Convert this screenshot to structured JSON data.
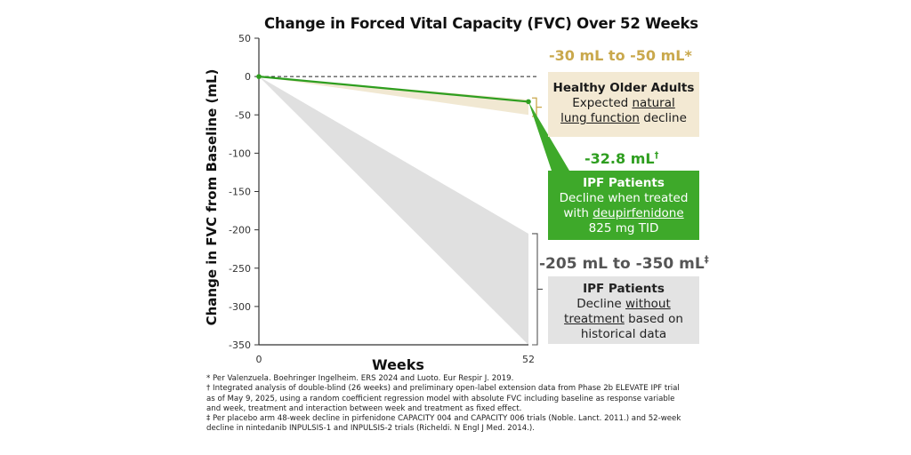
{
  "chart_data": {
    "type": "line",
    "title": "Change in Forced Vital Capacity (FVC) Over 52 Weeks",
    "xlabel": "Weeks",
    "ylabel": "Change in FVC from Baseline (mL)",
    "xlim": [
      0,
      52
    ],
    "ylim": [
      -350,
      50
    ],
    "x_ticks": [
      0,
      52
    ],
    "y_ticks": [
      50,
      0,
      -50,
      -100,
      -150,
      -200,
      -250,
      -300,
      -350
    ],
    "grid": false,
    "reference_line": {
      "y": 0,
      "style": "dashed"
    },
    "series": [
      {
        "name": "IPF Patients treated with deupirfenidone",
        "type": "line",
        "x": [
          0,
          52
        ],
        "y": [
          0,
          -32.8
        ],
        "color": "#2e9e1f"
      }
    ],
    "bands": [
      {
        "name": "Healthy Older Adults",
        "x": [
          0,
          52
        ],
        "upper": [
          0,
          -30
        ],
        "lower": [
          0,
          -50
        ],
        "color": "#f1e8d2"
      },
      {
        "name": "IPF Patients without treatment",
        "x": [
          0,
          52
        ],
        "upper": [
          0,
          -205
        ],
        "lower": [
          0,
          -350
        ],
        "color": "#e0e0e0"
      }
    ],
    "annotations": [
      {
        "range_label": "-30 mL to -50 mL*",
        "heading": "Healthy Older Adults",
        "lines": [
          "Expected ",
          "natural lung function",
          " decline"
        ],
        "color": "#c9a84c",
        "box_color": "#f3e9d3"
      },
      {
        "range_label": "-32.8 mL†",
        "heading": "IPF Patients",
        "lines": [
          "Decline when treated with ",
          "deupirfenidone",
          " 825 mg TID"
        ],
        "color": "#2e9e1f",
        "box_color": "#3ea92a"
      },
      {
        "range_label": "-205 mL to -350 mL‡",
        "heading": "IPF Patients",
        "lines": [
          "Decline ",
          "without treatment",
          " based on historical data"
        ],
        "color": "#555555",
        "box_color": "#e3e3e3"
      }
    ]
  },
  "boxes": {
    "healthy": {
      "range": "-30 mL to -50 mL*",
      "head": "Healthy Older Adults",
      "l1a": "Expected ",
      "l1u": "natural",
      "l2u": "lung function",
      "l2b": " decline"
    },
    "treated": {
      "range": "-32.8 mL",
      "range_sup": "†",
      "head": "IPF Patients",
      "l1": "Decline when treated",
      "l2a": "with ",
      "l2u": "deupirfenidone",
      "l3": "825 mg TID"
    },
    "untreated": {
      "range": "-205 mL to -350 mL",
      "range_sup": "‡",
      "head": "IPF Patients",
      "l1a": "Decline ",
      "l1u": "without",
      "l2u": "treatment",
      "l2b": " based on",
      "l3": "historical data"
    }
  },
  "footnotes": [
    "* Per Valenzuela. Boehringer Ingelheim. ERS 2024 and Luoto. Eur Respir J. 2019.",
    "† Integrated analysis of double-blind (26 weeks) and preliminary open-label extension data from Phase 2b ELEVATE IPF trial",
    "as of May 9, 2025, using a random coefficient regression model with absolute FVC including baseline as response variable",
    "and week, treatment and interaction between week and treatment as fixed effect.",
    "‡ Per placebo arm 48-week decline in pirfenidone CAPACITY 004 and CAPACITY 006 trials (Noble. Lanct. 2011.) and 52-week",
    "decline in nintedanib INPULSIS-1 and INPULSIS-2 trials (Richeldi. N Engl J Med. 2014.)."
  ]
}
